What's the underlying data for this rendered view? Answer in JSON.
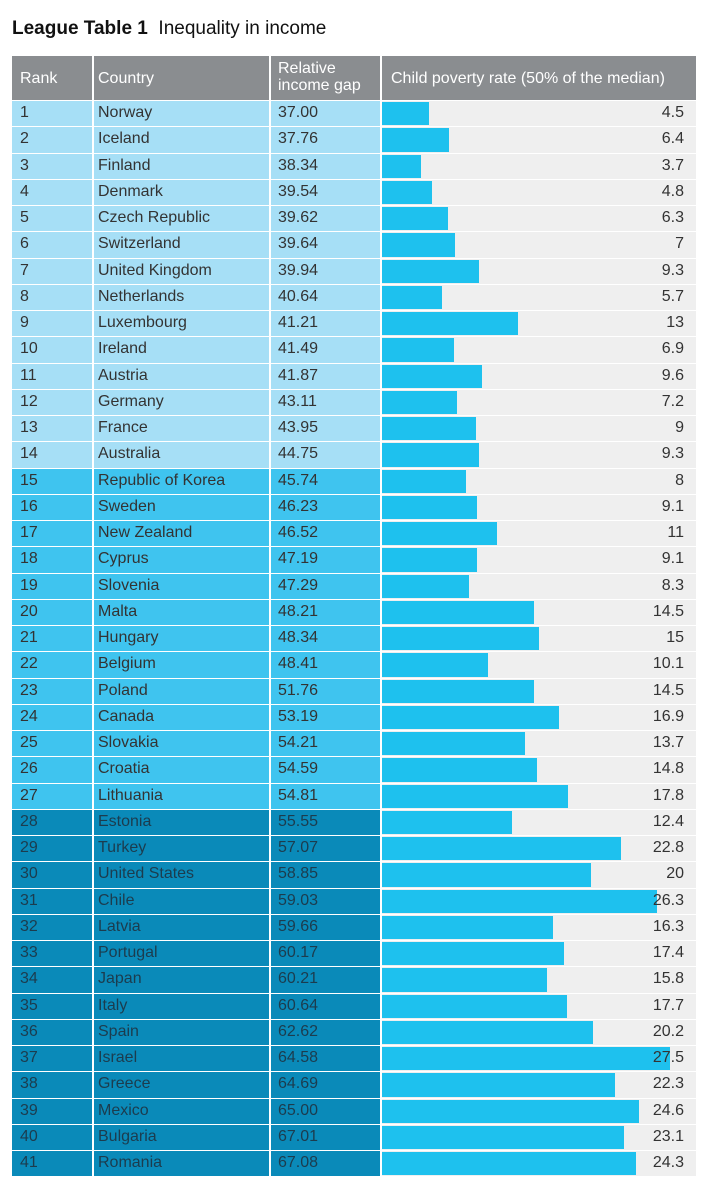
{
  "title": {
    "bold": "League Table 1",
    "rest": "Inequality in income"
  },
  "colors": {
    "tier1": "#a6dff6",
    "tier2": "#3fc4ef",
    "tier3": "#0a8ab9",
    "bar": "#1ec1ee",
    "header": "#8a8d90"
  },
  "chart_data": {
    "type": "table",
    "title": "League Table 1 Inequality in income",
    "columns": [
      "Rank",
      "Country",
      "Relative income gap",
      "Child poverty rate (50% of the median)"
    ],
    "header": {
      "rank": "Rank",
      "country": "Country",
      "gap_line1": "Relative",
      "gap_line2": "income gap",
      "poverty": "Child poverty rate (50% of the median)"
    },
    "xlim": [
      0,
      30
    ],
    "rows": [
      {
        "rank": "1",
        "country": "Norway",
        "gap": "37.00",
        "poverty": "4.5",
        "tier": 1
      },
      {
        "rank": "2",
        "country": "Iceland",
        "gap": "37.76",
        "poverty": "6.4",
        "tier": 1
      },
      {
        "rank": "3",
        "country": "Finland",
        "gap": "38.34",
        "poverty": "3.7",
        "tier": 1
      },
      {
        "rank": "4",
        "country": "Denmark",
        "gap": "39.54",
        "poverty": "4.8",
        "tier": 1
      },
      {
        "rank": "5",
        "country": "Czech Republic",
        "gap": "39.62",
        "poverty": "6.3",
        "tier": 1
      },
      {
        "rank": "6",
        "country": "Switzerland",
        "gap": "39.64",
        "poverty": "7",
        "tier": 1
      },
      {
        "rank": "7",
        "country": "United Kingdom",
        "gap": "39.94",
        "poverty": "9.3",
        "tier": 1
      },
      {
        "rank": "8",
        "country": "Netherlands",
        "gap": "40.64",
        "poverty": "5.7",
        "tier": 1
      },
      {
        "rank": "9",
        "country": "Luxembourg",
        "gap": "41.21",
        "poverty": "13",
        "tier": 1
      },
      {
        "rank": "10",
        "country": "Ireland",
        "gap": "41.49",
        "poverty": "6.9",
        "tier": 1
      },
      {
        "rank": "11",
        "country": "Austria",
        "gap": "41.87",
        "poverty": "9.6",
        "tier": 1
      },
      {
        "rank": "12",
        "country": "Germany",
        "gap": "43.11",
        "poverty": "7.2",
        "tier": 1
      },
      {
        "rank": "13",
        "country": "France",
        "gap": "43.95",
        "poverty": "9",
        "tier": 1
      },
      {
        "rank": "14",
        "country": "Australia",
        "gap": "44.75",
        "poverty": "9.3",
        "tier": 1
      },
      {
        "rank": "15",
        "country": "Republic of Korea",
        "gap": "45.74",
        "poverty": "8",
        "tier": 2
      },
      {
        "rank": "16",
        "country": "Sweden",
        "gap": "46.23",
        "poverty": "9.1",
        "tier": 2
      },
      {
        "rank": "17",
        "country": "New Zealand",
        "gap": "46.52",
        "poverty": "11",
        "tier": 2
      },
      {
        "rank": "18",
        "country": "Cyprus",
        "gap": "47.19",
        "poverty": "9.1",
        "tier": 2
      },
      {
        "rank": "19",
        "country": "Slovenia",
        "gap": "47.29",
        "poverty": "8.3",
        "tier": 2
      },
      {
        "rank": "20",
        "country": "Malta",
        "gap": "48.21",
        "poverty": "14.5",
        "tier": 2
      },
      {
        "rank": "21",
        "country": "Hungary",
        "gap": "48.34",
        "poverty": "15",
        "tier": 2
      },
      {
        "rank": "22",
        "country": "Belgium",
        "gap": "48.41",
        "poverty": "10.1",
        "tier": 2
      },
      {
        "rank": "23",
        "country": "Poland",
        "gap": "51.76",
        "poverty": "14.5",
        "tier": 2
      },
      {
        "rank": "24",
        "country": "Canada",
        "gap": "53.19",
        "poverty": "16.9",
        "tier": 2
      },
      {
        "rank": "25",
        "country": "Slovakia",
        "gap": "54.21",
        "poverty": "13.7",
        "tier": 2
      },
      {
        "rank": "26",
        "country": "Croatia",
        "gap": "54.59",
        "poverty": "14.8",
        "tier": 2
      },
      {
        "rank": "27",
        "country": "Lithuania",
        "gap": "54.81",
        "poverty": "17.8",
        "tier": 2
      },
      {
        "rank": "28",
        "country": "Estonia",
        "gap": "55.55",
        "poverty": "12.4",
        "tier": 3
      },
      {
        "rank": "29",
        "country": "Turkey",
        "gap": "57.07",
        "poverty": "22.8",
        "tier": 3
      },
      {
        "rank": "30",
        "country": "United States",
        "gap": "58.85",
        "poverty": "20",
        "tier": 3
      },
      {
        "rank": "31",
        "country": "Chile",
        "gap": "59.03",
        "poverty": "26.3",
        "tier": 3
      },
      {
        "rank": "32",
        "country": "Latvia",
        "gap": "59.66",
        "poverty": "16.3",
        "tier": 3
      },
      {
        "rank": "33",
        "country": "Portugal",
        "gap": "60.17",
        "poverty": "17.4",
        "tier": 3
      },
      {
        "rank": "34",
        "country": "Japan",
        "gap": "60.21",
        "poverty": "15.8",
        "tier": 3
      },
      {
        "rank": "35",
        "country": "Italy",
        "gap": "60.64",
        "poverty": "17.7",
        "tier": 3
      },
      {
        "rank": "36",
        "country": "Spain",
        "gap": "62.62",
        "poverty": "20.2",
        "tier": 3
      },
      {
        "rank": "37",
        "country": "Israel",
        "gap": "64.58",
        "poverty": "27.5",
        "tier": 3
      },
      {
        "rank": "38",
        "country": "Greece",
        "gap": "64.69",
        "poverty": "22.3",
        "tier": 3
      },
      {
        "rank": "39",
        "country": "Mexico",
        "gap": "65.00",
        "poverty": "24.6",
        "tier": 3
      },
      {
        "rank": "40",
        "country": "Bulgaria",
        "gap": "67.01",
        "poverty": "23.1",
        "tier": 3
      },
      {
        "rank": "41",
        "country": "Romania",
        "gap": "67.08",
        "poverty": "24.3",
        "tier": 3
      }
    ]
  }
}
